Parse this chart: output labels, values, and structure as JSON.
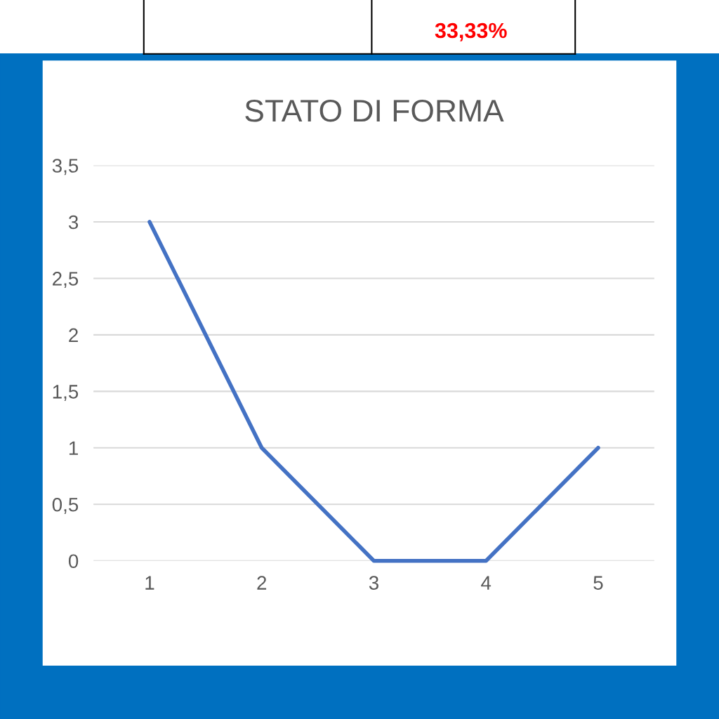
{
  "chart_data": {
    "type": "line",
    "title": "STATO DI FORMA",
    "categories": [
      "1",
      "2",
      "3",
      "4",
      "5"
    ],
    "series": [
      {
        "color": "#4472c4",
        "values": [
          3,
          1,
          0,
          0,
          1
        ]
      }
    ],
    "ylim": [
      0,
      3.5
    ],
    "yticks": [
      0,
      {
        "value": 0.5,
        "label": "0,5"
      },
      1,
      {
        "value": 1.5,
        "label": "1,5"
      },
      2,
      {
        "value": 2.5,
        "label": "2,5"
      },
      3,
      {
        "value": 3.5,
        "label": "3,5"
      }
    ],
    "grid": "y",
    "legend": false,
    "marker": "none",
    "line_style": "solid",
    "annotations": [
      "33,33%"
    ]
  }
}
